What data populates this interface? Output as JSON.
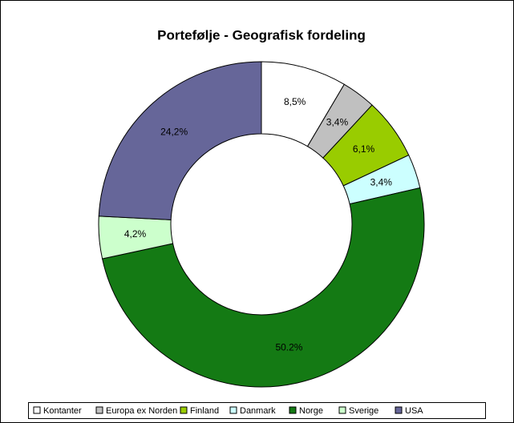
{
  "chart_data": {
    "type": "donut",
    "title": "Portefølje - Geografisk fordeling",
    "categories": [
      "Kontanter",
      "Europa ex Norden",
      "Finland",
      "Danmark",
      "Norge",
      "Sverige",
      "USA"
    ],
    "values": [
      8.5,
      3.4,
      6.1,
      3.4,
      50.2,
      4.2,
      24.2
    ],
    "value_labels": [
      "8,5%",
      "3,4%",
      "6,1%",
      "3,4%",
      "50.2%",
      "4,2%",
      "24,2%"
    ],
    "colors": [
      "#ffffff",
      "#c0c0c0",
      "#99cc00",
      "#ccffff",
      "#147a14",
      "#ccffcc",
      "#666699"
    ],
    "legend": "bottom"
  }
}
